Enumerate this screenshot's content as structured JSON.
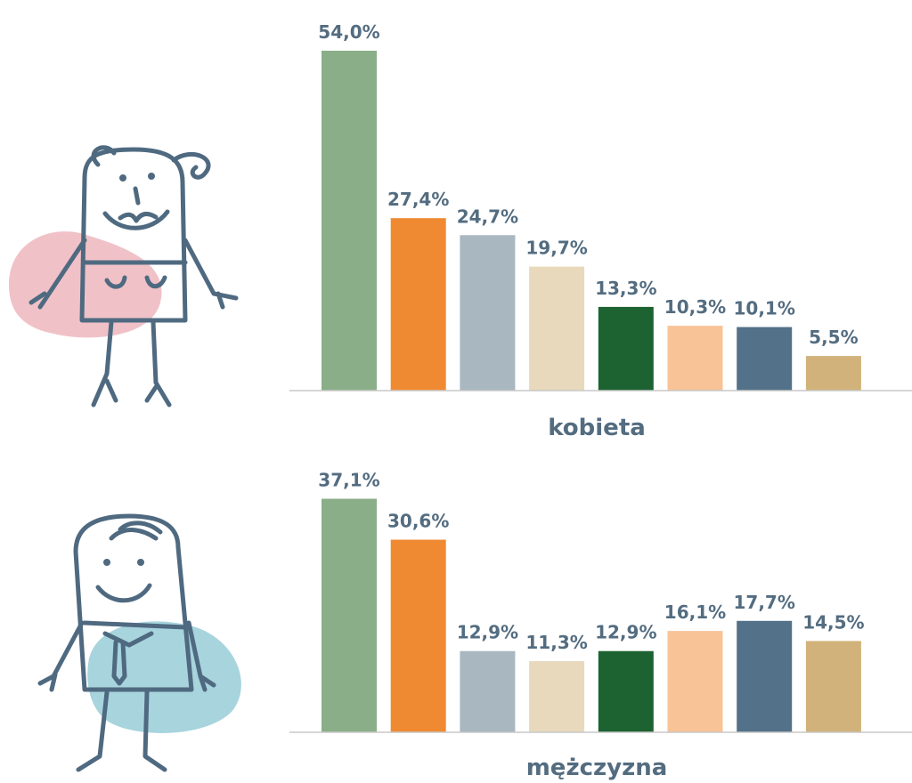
{
  "chart_data": [
    {
      "type": "bar",
      "title": "kobieta",
      "values": [
        54.0,
        27.4,
        24.7,
        19.7,
        13.3,
        10.3,
        10.1,
        5.5
      ],
      "value_labels": [
        "54,0%",
        "27,4%",
        "24,7%",
        "19,7%",
        "13,3%",
        "10,3%",
        "10,1%",
        "5,5%"
      ],
      "colors": [
        "#8aae88",
        "#ef8a33",
        "#a9b7c0",
        "#e8d9bc",
        "#1d6332",
        "#f8c397",
        "#537289",
        "#d1b27a"
      ],
      "ylim": [
        0,
        54
      ]
    },
    {
      "type": "bar",
      "title": "mężczyzna",
      "values": [
        37.1,
        30.6,
        12.9,
        11.3,
        12.9,
        16.1,
        17.7,
        14.5
      ],
      "value_labels": [
        "37,1%",
        "30,6%",
        "12,9%",
        "11,3%",
        "12,9%",
        "16,1%",
        "17,7%",
        "14,5%"
      ],
      "colors": [
        "#8aae88",
        "#ef8a33",
        "#a9b7c0",
        "#e8d9bc",
        "#1d6332",
        "#f8c397",
        "#537289",
        "#d1b27a"
      ],
      "ylim": [
        0,
        54
      ]
    }
  ]
}
